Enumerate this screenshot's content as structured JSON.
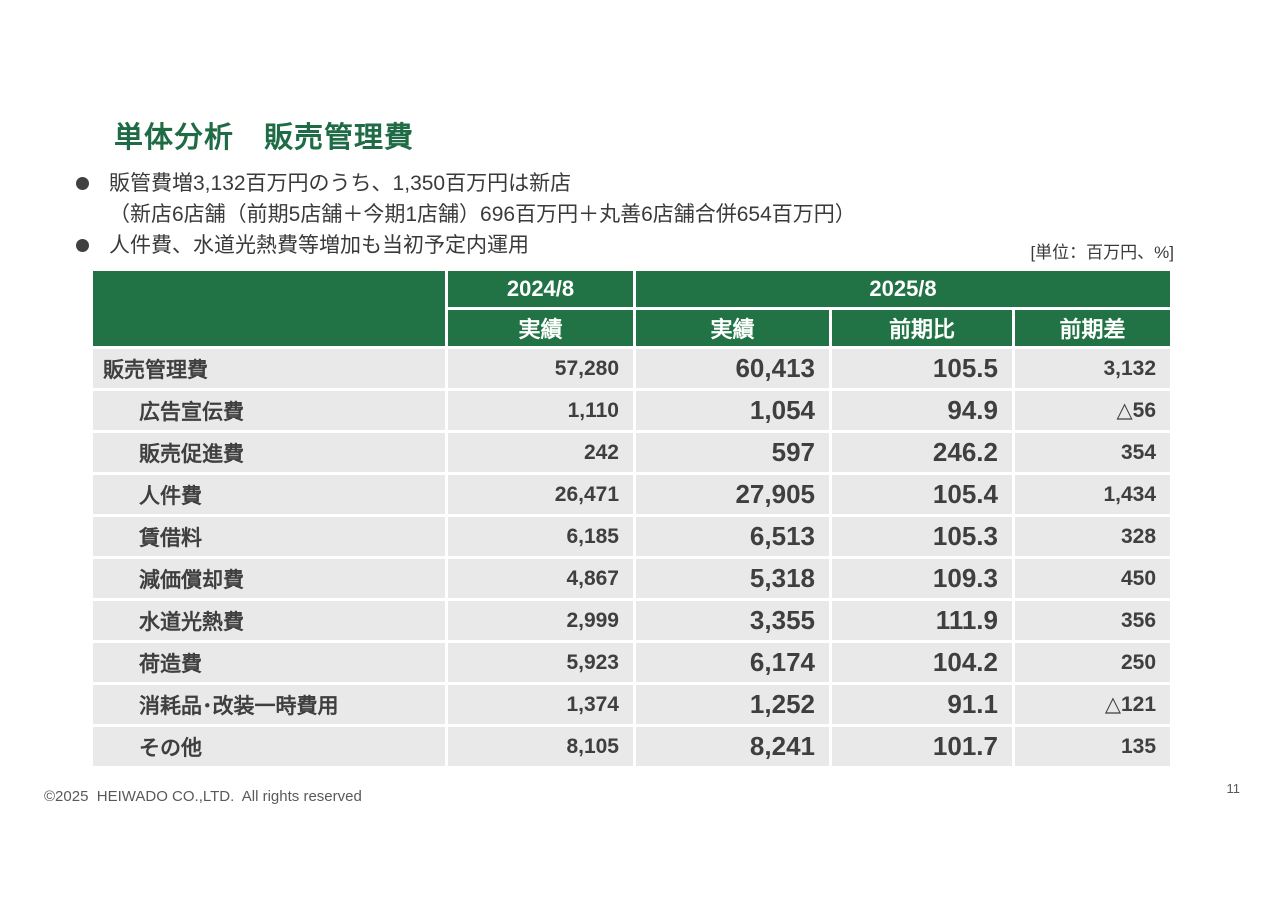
{
  "slide": {
    "title": "単体分析　販売管理費",
    "bullets": [
      {
        "line1": "販管費増3,132百万円のうち、1,350百万円は新店",
        "line2": "（新店6店舗（前期5店舗＋今期1店舗）696百万円＋丸善6店舗合併654百万円）"
      },
      {
        "line1": "人件費、水道光熱費等増加も当初予定内運用",
        "line2": ""
      }
    ],
    "unit_note": "[単位：百万円、%]",
    "footer": "©2025  HEIWADO CO.,LTD.  All rights reserved",
    "page_number": "11"
  },
  "table": {
    "groups": {
      "y2024": "2024/8",
      "y2025": "2025/8"
    },
    "headers": {
      "actual_2024": "実績",
      "actual_2025": "実績",
      "yoy_ratio": "前期比",
      "yoy_diff": "前期差"
    },
    "rows": [
      {
        "label": "販売管理費",
        "v1": "57,280",
        "v2": "60,413",
        "v3": "105.5",
        "v4": "3,132"
      },
      {
        "label": "広告宣伝費",
        "v1": "1,110",
        "v2": "1,054",
        "v3": "94.9",
        "v4": "△56"
      },
      {
        "label": "販売促進費",
        "v1": "242",
        "v2": "597",
        "v3": "246.2",
        "v4": "354"
      },
      {
        "label": "人件費",
        "v1": "26,471",
        "v2": "27,905",
        "v3": "105.4",
        "v4": "1,434"
      },
      {
        "label": "賃借料",
        "v1": "6,185",
        "v2": "6,513",
        "v3": "105.3",
        "v4": "328"
      },
      {
        "label": "減価償却費",
        "v1": "4,867",
        "v2": "5,318",
        "v3": "109.3",
        "v4": "450"
      },
      {
        "label": "水道光熱費",
        "v1": "2,999",
        "v2": "3,355",
        "v3": "111.9",
        "v4": "356"
      },
      {
        "label": "荷造費",
        "v1": "5,923",
        "v2": "6,174",
        "v3": "104.2",
        "v4": "250"
      },
      {
        "label": "消耗品･改装一時費用",
        "v1": "1,374",
        "v2": "1,252",
        "v3": "91.1",
        "v4": "△121"
      },
      {
        "label": "その他",
        "v1": "8,105",
        "v2": "8,241",
        "v3": "101.7",
        "v4": "135"
      }
    ]
  },
  "colors": {
    "header_green": "#217346",
    "title_green": "#1e6b45",
    "row_gray": "#e9e9e9",
    "body_text": "#3f3f3f"
  }
}
